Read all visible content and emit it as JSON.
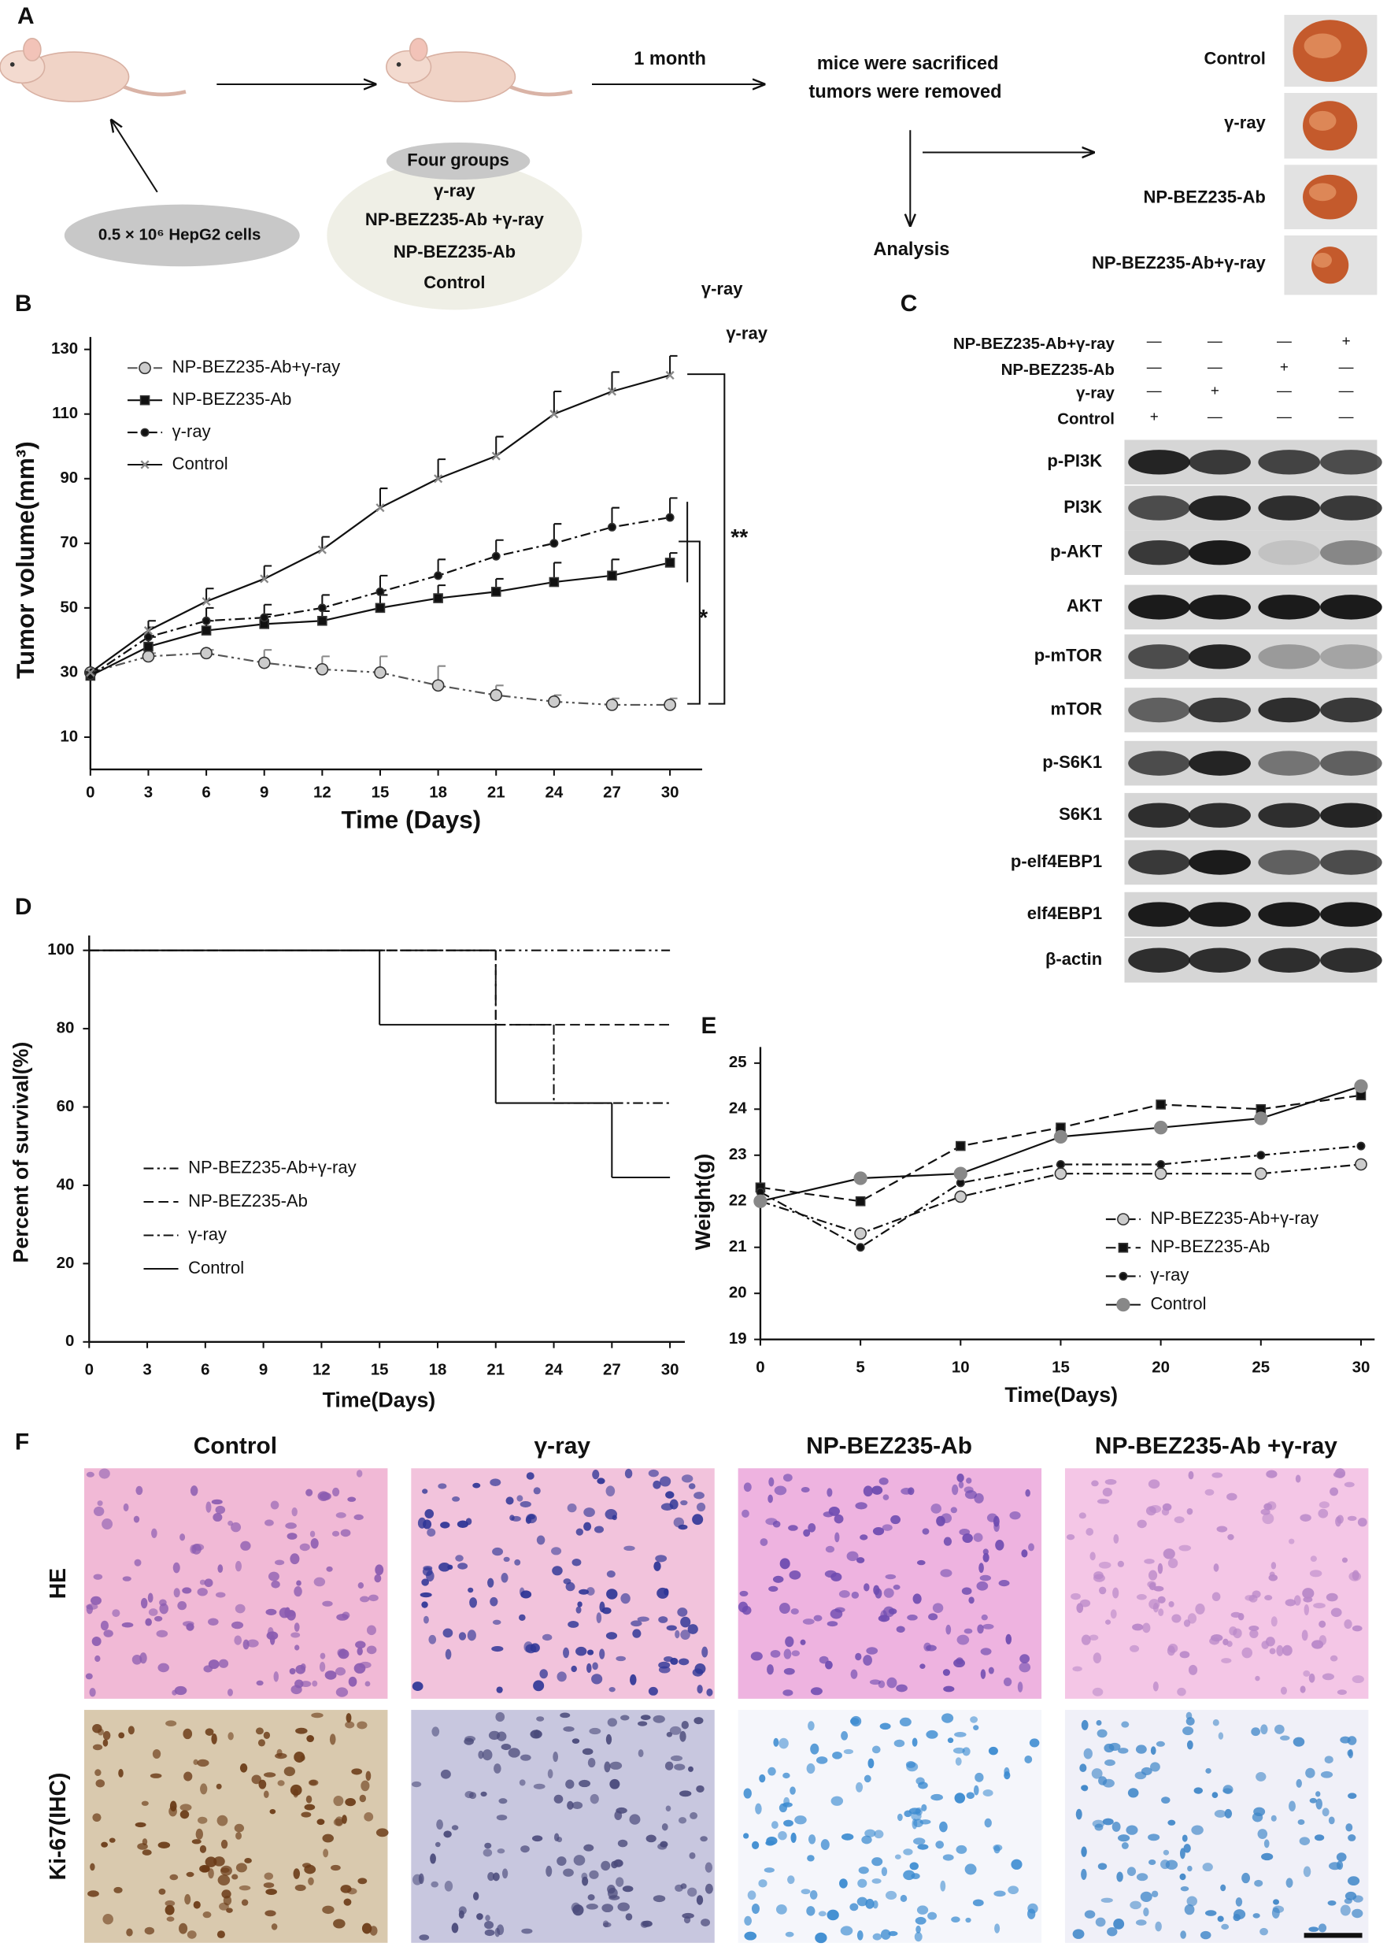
{
  "panel_labels": [
    "A",
    "B",
    "C",
    "D",
    "E",
    "F"
  ],
  "panel_a": {
    "cells": "0.5 × 10⁶ HepG2 cells",
    "interval": "1 month",
    "outcome": [
      "mice were sacrificed",
      "tumors were removed"
    ],
    "analysis": "Analysis",
    "groups_title": "Four groups",
    "groups": [
      "γ-ray",
      "NP-BEZ235-Ab +γ-ray",
      "NP-BEZ235-Ab",
      "Control"
    ],
    "tumor_labels": [
      "Control",
      "γ-ray",
      "NP-BEZ235-Ab",
      "NP-BEZ235-Ab+γ-ray"
    ]
  },
  "chart_data": [
    {
      "type": "line",
      "x_label": "Time (Days)",
      "y_label": "Tumor volume(mm³)",
      "xlim": [
        0,
        30
      ],
      "xticks": [
        0,
        3,
        6,
        9,
        12,
        15,
        18,
        21,
        24,
        27,
        30
      ],
      "ylim": [
        0,
        130
      ],
      "yticks": [
        10,
        30,
        50,
        70,
        90,
        110,
        130
      ],
      "x": [
        0,
        3,
        6,
        9,
        12,
        15,
        18,
        21,
        24,
        27,
        30
      ],
      "series": [
        {
          "name": "NP-BEZ235-Ab+γ-ray",
          "color": "#555555",
          "dash": "dashdotdot",
          "marker": "open-circle",
          "marker_color": "#cccccc",
          "values": [
            30,
            35,
            36,
            33,
            31,
            30,
            26,
            23,
            21,
            20,
            20
          ],
          "errors": [
            1,
            1,
            1,
            4,
            4,
            5,
            6,
            3,
            2,
            2,
            2
          ]
        },
        {
          "name": "NP-BEZ235-Ab",
          "color": "#111111",
          "dash": "solid",
          "marker": "square",
          "marker_color": "#111111",
          "values": [
            29,
            38,
            43,
            45,
            46,
            50,
            53,
            55,
            58,
            60,
            64
          ],
          "errors": [
            2,
            3,
            3,
            3,
            3,
            4,
            4,
            4,
            6,
            5,
            3
          ]
        },
        {
          "name": "γ-ray",
          "color": "#111111",
          "dash": "dashdot",
          "marker": "dot",
          "marker_color": "#111111",
          "values": [
            29,
            41,
            46,
            47,
            50,
            55,
            60,
            66,
            70,
            75,
            78
          ],
          "errors": [
            2,
            3,
            4,
            4,
            4,
            5,
            5,
            5,
            6,
            6,
            6
          ]
        },
        {
          "name": "Control",
          "color": "#111111",
          "dash": "solid",
          "marker": "cross",
          "marker_color": "#888888",
          "values": [
            30,
            43,
            52,
            59,
            68,
            81,
            90,
            97,
            110,
            117,
            122
          ],
          "errors": [
            1,
            3,
            4,
            4,
            4,
            6,
            6,
            6,
            7,
            6,
            6
          ]
        }
      ],
      "annotations": [
        "**",
        "*",
        "γ-ray",
        "γ-ray"
      ]
    },
    {
      "type": "step",
      "x_label": "Time(Days)",
      "y_label": "Percent of survival(%)",
      "xlim": [
        0,
        30
      ],
      "xticks": [
        0,
        3,
        6,
        9,
        12,
        15,
        18,
        21,
        24,
        27,
        30
      ],
      "ylim": [
        0,
        100
      ],
      "yticks": [
        0,
        20,
        40,
        60,
        80,
        100
      ],
      "series": [
        {
          "name": "NP-BEZ235-Ab+γ-ray",
          "color": "#111111",
          "dash": "dashdotdot",
          "x": [
            0
          ],
          "values": [
            100
          ]
        },
        {
          "name": "NP-BEZ235-Ab",
          "color": "#111111",
          "dash": "dashed",
          "x": [
            0,
            21
          ],
          "values": [
            100,
            81
          ]
        },
        {
          "name": "γ-ray",
          "color": "#111111",
          "dash": "dashdot",
          "x": [
            0,
            21,
            24
          ],
          "values": [
            100,
            81,
            61
          ]
        },
        {
          "name": "Control",
          "color": "#111111",
          "dash": "solid",
          "x": [
            0,
            15,
            21,
            27
          ],
          "values": [
            100,
            81,
            61,
            42
          ]
        }
      ]
    },
    {
      "type": "line",
      "x_label": "Time(Days)",
      "y_label": "Weight(g)",
      "xlim": [
        0,
        30
      ],
      "xticks": [
        0,
        5,
        10,
        15,
        20,
        25,
        30
      ],
      "ylim": [
        19,
        25
      ],
      "yticks": [
        19,
        20,
        21,
        22,
        23,
        24,
        25
      ],
      "x": [
        0,
        5,
        10,
        15,
        20,
        25,
        30
      ],
      "series": [
        {
          "name": "NP-BEZ235-Ab+γ-ray",
          "color": "#111111",
          "dash": "dashdot",
          "marker": "open-circle",
          "marker_color": "#cccccc",
          "values": [
            22,
            21.3,
            22.1,
            22.6,
            22.6,
            22.6,
            22.8
          ]
        },
        {
          "name": "NP-BEZ235-Ab",
          "color": "#111111",
          "dash": "dashed",
          "marker": "square",
          "marker_color": "#111111",
          "values": [
            22.3,
            22,
            23.2,
            23.6,
            24.1,
            24,
            24.3
          ]
        },
        {
          "name": "γ-ray",
          "color": "#111111",
          "dash": "dashdot",
          "marker": "dot",
          "marker_color": "#111111",
          "values": [
            22.2,
            21,
            22.4,
            22.8,
            22.8,
            23,
            23.2
          ]
        },
        {
          "name": "Control",
          "color": "#111111",
          "dash": "solid",
          "marker": "filled-circle",
          "marker_color": "#888888",
          "values": [
            22,
            22.5,
            22.6,
            23.4,
            23.6,
            23.8,
            24.5
          ]
        }
      ]
    }
  ],
  "panel_c": {
    "conditions": [
      "NP-BEZ235-Ab+γ-ray",
      "NP-BEZ235-Ab",
      "γ-ray",
      "Control"
    ],
    "marks": [
      [
        "—",
        "—",
        "—",
        "+"
      ],
      [
        "—",
        "—",
        "+",
        "—"
      ],
      [
        "—",
        "+",
        "—",
        "—"
      ],
      [
        "+",
        "—",
        "—",
        "—"
      ]
    ],
    "proteins": [
      "p-PI3K",
      "PI3K",
      "p-AKT",
      "AKT",
      "p-mTOR",
      "mTOR",
      "p-S6K1",
      "S6K1",
      "p-elf4EBP1",
      "elf4EBP1",
      "β-actin"
    ]
  },
  "panel_f": {
    "columns": [
      "Control",
      "γ-ray",
      "NP-BEZ235-Ab",
      "NP-BEZ235-Ab +γ-ray"
    ],
    "rows": [
      "HE",
      "Ki-67(IHC)"
    ]
  }
}
